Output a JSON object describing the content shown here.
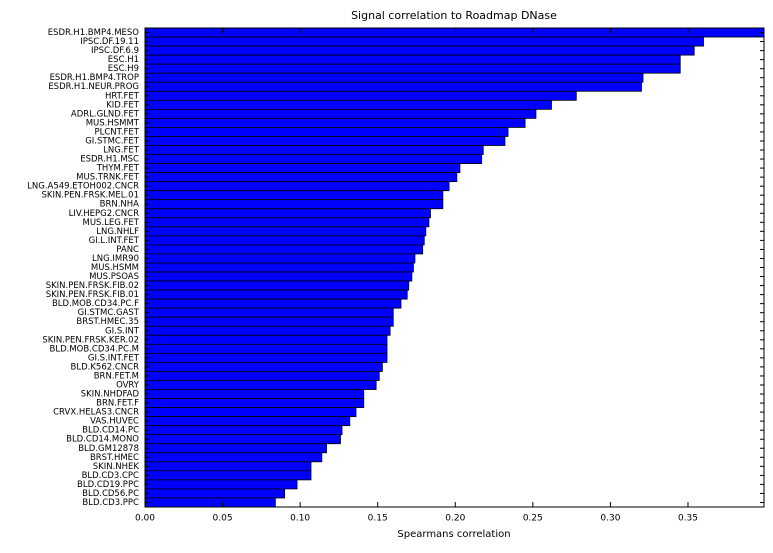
{
  "chart_data": {
    "type": "barh",
    "title": "Signal correlation to Roadmap DNase",
    "xlabel": "Spearmans correlation",
    "color": "#0000ff",
    "categories": [
      "ESDR.H1.BMP4.MESO",
      "IPSC.DF.19.11",
      "IPSC.DF.6.9",
      "ESC.H1",
      "ESC.H9",
      "ESDR.H1.BMP4.TROP",
      "ESDR.H1.NEUR.PROG",
      "HRT.FET",
      "KID.FET",
      "ADRL.GLND.FET",
      "MUS.HSMMT",
      "PLCNT.FET",
      "GI.STMC.FET",
      "LNG.FET",
      "ESDR.H1.MSC",
      "THYM.FET",
      "MUS.TRNK.FET",
      "LNG.A549.ETOH002.CNCR",
      "SKIN.PEN.FRSK.MEL.01",
      "BRN.NHA",
      "LIV.HEPG2.CNCR",
      "MUS.LEG.FET",
      "LNG.NHLF",
      "GI.L.INT.FET",
      "PANC",
      "LNG.IMR90",
      "MUS.HSMM",
      "MUS.PSOAS",
      "SKIN.PEN.FRSK.FIB.02",
      "SKIN.PEN.FRSK.FIB.01",
      "BLD.MOB.CD34.PC.F",
      "GI.STMC.GAST",
      "BRST.HMEC.35",
      "GI.S.INT",
      "SKIN.PEN.FRSK.KER.02",
      "BLD.MOB.CD34.PC.M",
      "GI.S.INT.FET",
      "BLD.K562.CNCR",
      "BRN.FET.M",
      "OVRY",
      "SKIN.NHDFAD",
      "BRN.FET.F",
      "CRVX.HELAS3.CNCR",
      "VAS.HUVEC",
      "BLD.CD14.PC",
      "BLD.CD14.MONO",
      "BLD.GM12878",
      "BRST.HMEC",
      "SKIN.NHEK",
      "BLD.CD3.CPC",
      "BLD.CD19.PPC",
      "BLD.CD56.PC",
      "BLD.CD3.PPC"
    ],
    "values": [
      0.399,
      0.36,
      0.354,
      0.345,
      0.345,
      0.321,
      0.32,
      0.278,
      0.262,
      0.252,
      0.245,
      0.234,
      0.232,
      0.218,
      0.217,
      0.203,
      0.201,
      0.196,
      0.192,
      0.192,
      0.184,
      0.183,
      0.181,
      0.18,
      0.179,
      0.174,
      0.173,
      0.172,
      0.17,
      0.169,
      0.165,
      0.16,
      0.16,
      0.158,
      0.156,
      0.156,
      0.156,
      0.153,
      0.151,
      0.149,
      0.141,
      0.141,
      0.136,
      0.132,
      0.127,
      0.126,
      0.117,
      0.114,
      0.107,
      0.107,
      0.098,
      0.09,
      0.084
    ],
    "xlim": [
      0,
      0.399
    ],
    "xticks": [
      {
        "value": 0,
        "label": "0.00"
      },
      0.05,
      {
        "value": 0.1,
        "label": "0.10"
      },
      0.15,
      {
        "value": 0.2,
        "label": "0.20"
      },
      0.25,
      {
        "value": 0.3,
        "label": "0.30"
      },
      0.35
    ]
  }
}
